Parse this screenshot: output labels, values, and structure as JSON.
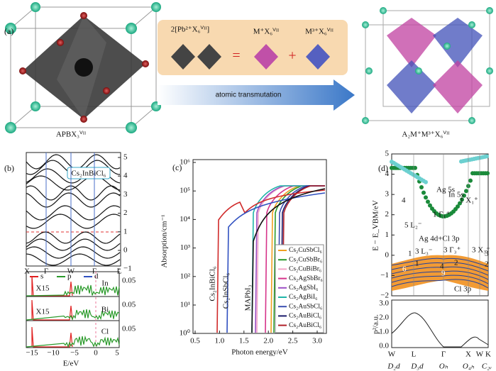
{
  "panel_a": {
    "label": "(a)",
    "left_caption": "APBX₃ⱽᴵᴵ",
    "box_left": "2[Pb²⁺X₆ⱽᴵᴵ]",
    "box_mid": "M⁺X₆ⱽᴵᴵ",
    "box_right": "M³⁺X₆ⱽᴵᴵ",
    "equals": "=",
    "plus": "+",
    "arrow_text": "atomic transmutation",
    "right_caption": "A₂M⁺M³⁺X₆ⱽᴵᴵ"
  },
  "panel_b": {
    "label": "(b)",
    "compound": "Cs₂InBiCl₆",
    "yticks": [
      "5",
      "4",
      "3",
      "2",
      "1",
      "0",
      "−1"
    ],
    "kpoints": [
      "X",
      "Γ",
      "W",
      "Γ",
      "L"
    ],
    "legend": [
      "s",
      "p",
      "d"
    ],
    "dos_labels": [
      "X15",
      "X15",
      "In",
      "Bi",
      "Cl"
    ],
    "dos_ticks": [
      "0.05",
      "0.05",
      "0.05"
    ],
    "xticks": [
      "−15",
      "−10",
      "−5",
      "0",
      "5"
    ],
    "xlabel": "E/eV"
  },
  "panel_c": {
    "label": "(c)",
    "ylabel": "Absorption/cm⁻¹",
    "yticks": [
      "10⁶",
      "10⁵",
      "10⁴",
      "10³",
      "10²",
      "10¹",
      "10⁰"
    ],
    "xticks": [
      "0.5",
      "1.0",
      "1.5",
      "2.0",
      "2.5",
      "3.0"
    ],
    "xlabel": "Photon energy/eV",
    "annotations": [
      "Cs₂InBiCl₆",
      "Cs₂InSbCl₆",
      "MAPbI₃"
    ],
    "legend": [
      {
        "name": "Cs₂CuSbCl₆",
        "color": "#f0a020"
      },
      {
        "name": "Cs₂CuSbBr₆",
        "color": "#2a9a2a"
      },
      {
        "name": "Cs₂CuBiBr₆",
        "color": "#f4a6c8"
      },
      {
        "name": "Cs₂AgSbBr₆",
        "color": "#d6338a"
      },
      {
        "name": "Cs₂AgSbI₆",
        "color": "#9b4fc4"
      },
      {
        "name": "Cs₂AgBiI₆",
        "color": "#1fb5a8"
      },
      {
        "name": "Cs₂AuSbCl₆",
        "color": "#3a4fb0"
      },
      {
        "name": "Cs₂AuBiCl₆",
        "color": "#1a1a6a"
      },
      {
        "name": "Cs₂AuBiCl₆",
        "color": "#b0202a"
      }
    ]
  },
  "panel_d": {
    "label": "(d)",
    "ylabel": "E − E_VBM/eV",
    "yticks": [
      "5",
      "4",
      "3",
      "2",
      "1",
      "0",
      "−1",
      "−2"
    ],
    "annotations": [
      "Ag 5s",
      "In 5s",
      "4",
      "1 X₁⁺",
      "1 Γ₁⁺",
      "5 L₂⁻",
      "Ag 4d+Cl 3p",
      "3 L₃⁻",
      "3 Γ₃⁺",
      "3 X₃⁺",
      "1",
      "6",
      "4",
      "9",
      "2",
      "3",
      "2",
      "Cl 3p",
      "1"
    ],
    "lower_ylabel": "p²/a.u.",
    "lower_yticks": [
      "3.0",
      "2.0",
      "1.0",
      "0.0"
    ],
    "kpoints": [
      "W",
      "L",
      "Γ",
      "X",
      "W",
      "K"
    ],
    "symmetry": [
      "D₂d",
      "D₃d",
      "Oₕ",
      "O₄ₕ",
      "C₂ᵥ"
    ]
  }
}
